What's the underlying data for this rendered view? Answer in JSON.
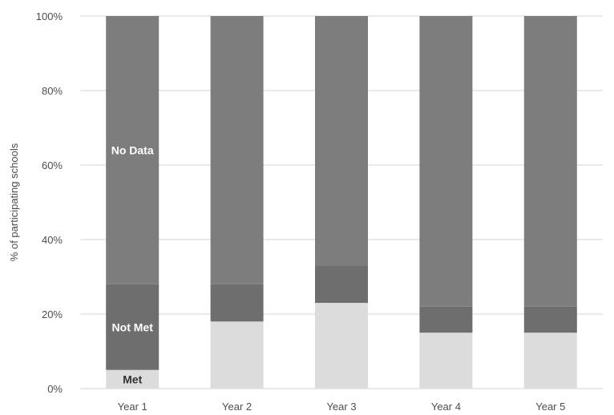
{
  "chart_data": {
    "type": "bar",
    "stacked": true,
    "categories": [
      "Year 1",
      "Year 2",
      "Year 3",
      "Year 4",
      "Year 5"
    ],
    "series": [
      {
        "name": "Met",
        "values": [
          5,
          18,
          23,
          15,
          15
        ],
        "color": "#dcdcdc"
      },
      {
        "name": "Not Met",
        "values": [
          23,
          10,
          10,
          7,
          7
        ],
        "color": "#6e6e6e"
      },
      {
        "name": "No Data",
        "values": [
          72,
          72,
          67,
          78,
          78
        ],
        "color": "#7d7d7d"
      }
    ],
    "segment_labels": {
      "Met": "Met",
      "Not Met": "Not Met",
      "No Data": "No Data"
    },
    "segment_label_category": "Year 1",
    "segment_label_colors": {
      "Met": "#333333",
      "Not Met": "#ffffff",
      "No Data": "#ffffff"
    },
    "ylabel": "% of participating schools",
    "xlabel": "",
    "title": "",
    "ylim": [
      0,
      100
    ],
    "yticks": [
      0,
      20,
      40,
      60,
      80,
      100
    ],
    "ytick_labels": [
      "0%",
      "20%",
      "40%",
      "60%",
      "80%",
      "100%"
    ],
    "grid": true,
    "legend": "none"
  }
}
